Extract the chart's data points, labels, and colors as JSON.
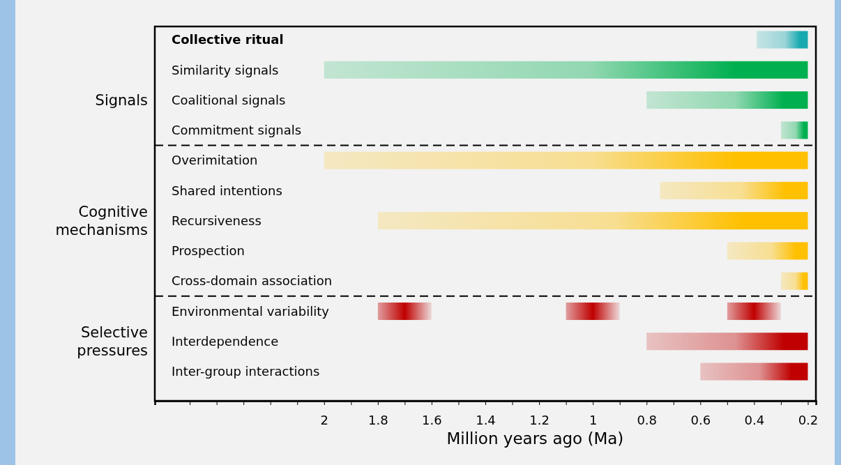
{
  "chart_data": {
    "type": "bar",
    "orientation": "horizontal",
    "categories": [
      "Collective ritual",
      "Similarity signals",
      "Coalitional signals",
      "Commitment signals",
      "Overimitation",
      "Shared intentions",
      "Recursiveness",
      "Prospection",
      "Cross-domain association",
      "Environmental variability",
      "Interdependence",
      "Inter-group interactions"
    ],
    "series": [
      {
        "colors": [
          "#17a9b0",
          "#00b050",
          "#00b050",
          "#00b050",
          "#ffc000",
          "#ffc000",
          "#ffc000",
          "#ffc000",
          "#ffc000",
          null,
          "#c00000",
          "#c00000"
        ],
        "base": [
          0.39,
          2,
          0.8,
          0.3,
          2,
          0.75,
          1.8,
          0.5,
          0.3,
          null,
          0.8,
          0.6
        ],
        "values": [
          -0.19,
          -1.8,
          -0.6,
          -0.1,
          -1.8,
          -0.55,
          -1.6,
          -0.3,
          -0.1,
          null,
          -0.6,
          -0.4
        ]
      },
      {
        "color": "#c00000",
        "base": [
          null,
          null,
          null,
          null,
          null,
          null,
          null,
          null,
          null,
          1.6,
          null,
          null
        ],
        "values": [
          null,
          null,
          null,
          null,
          null,
          null,
          null,
          null,
          null,
          0.2,
          null,
          null
        ]
      },
      {
        "color": "#c00000",
        "base": [
          null,
          null,
          null,
          null,
          null,
          null,
          null,
          null,
          null,
          0.9,
          null,
          null
        ],
        "values": [
          null,
          null,
          null,
          null,
          null,
          null,
          null,
          null,
          null,
          0.2,
          null,
          null
        ]
      },
      {
        "color": "#c00000",
        "base": [
          null,
          null,
          null,
          null,
          null,
          null,
          null,
          null,
          null,
          0.3,
          null,
          null
        ],
        "values": [
          null,
          null,
          null,
          null,
          null,
          null,
          null,
          null,
          null,
          0.2,
          null,
          null
        ]
      }
    ],
    "xlim": [
      2.63,
      0.17
    ],
    "xticks": [
      {
        "value": 2.5,
        "label": null
      },
      {
        "value": 2.4,
        "label": null
      },
      {
        "value": 2.3,
        "label": null
      },
      {
        "value": 2.2,
        "label": null
      },
      {
        "value": 2.1,
        "label": null
      },
      2,
      {
        "value": 1.9,
        "label": null
      },
      1.8,
      {
        "value": 1.7,
        "label": null
      },
      1.6,
      {
        "value": 1.5,
        "label": null
      },
      1.4,
      {
        "value": 1.3,
        "label": null
      },
      1.2,
      {
        "value": 1.1,
        "label": null
      },
      1,
      {
        "value": 0.9,
        "label": null
      },
      0.8,
      {
        "value": 0.7,
        "label": null
      },
      0.6,
      {
        "value": 0.5,
        "label": null
      },
      0.4,
      {
        "value": 0.3,
        "label": null
      },
      0.2
    ],
    "xlabel": "Million years ago (Ma)",
    "annotations": [
      "Signals",
      "Cognitive\nmechanisms",
      "Selective\npressures"
    ]
  }
}
